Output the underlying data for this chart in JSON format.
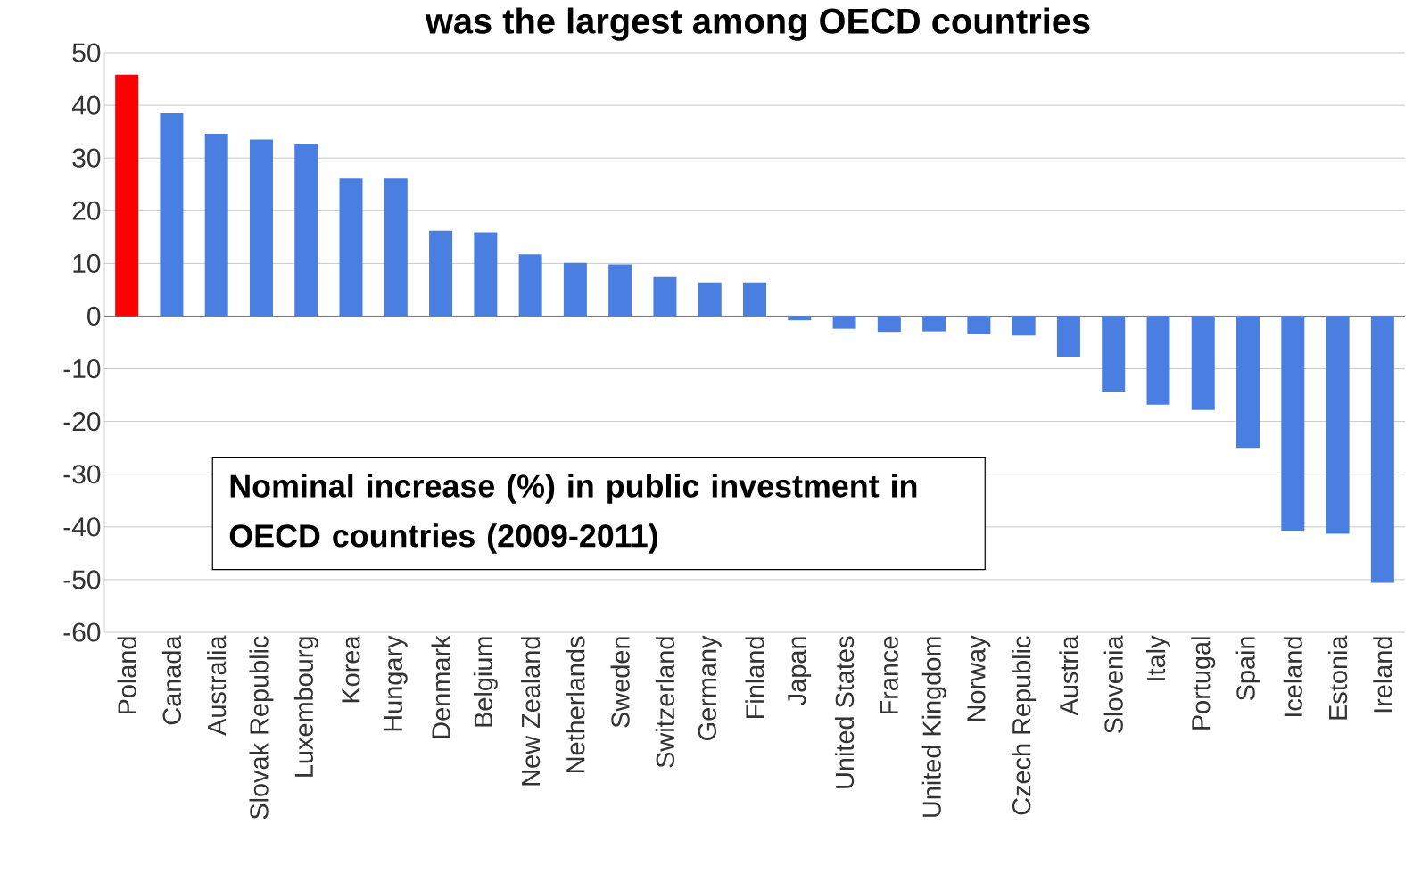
{
  "chart_data": {
    "type": "bar",
    "title": "was the largest among OECD countries",
    "categories": [
      "Poland",
      "Canada",
      "Australia",
      "Slovak Republic",
      "Luxembourg",
      "Korea",
      "Hungary",
      "Denmark",
      "Belgium",
      "New Zealand",
      "Netherlands",
      "Sweden",
      "Switzerland",
      "Germany",
      "Finland",
      "Japan",
      "United States",
      "France",
      "United Kingdom",
      "Norway",
      "Czech Republic",
      "Austria",
      "Slovenia",
      "Italy",
      "Portugal",
      "Spain",
      "Iceland",
      "Estonia",
      "Ireland"
    ],
    "values": [
      45.8,
      38.5,
      34.6,
      33.5,
      32.7,
      26.1,
      26.1,
      16.2,
      15.9,
      11.7,
      10.1,
      9.8,
      7.4,
      6.4,
      6.4,
      -0.8,
      -2.4,
      -3.0,
      -2.9,
      -3.4,
      -3.7,
      -7.7,
      -14.3,
      -16.8,
      -17.8,
      -25.0,
      -40.7,
      -41.3,
      -50.6
    ],
    "colors": [
      "#ff0000",
      "#4a7ee0",
      "#4a7ee0",
      "#4a7ee0",
      "#4a7ee0",
      "#4a7ee0",
      "#4a7ee0",
      "#4a7ee0",
      "#4a7ee0",
      "#4a7ee0",
      "#4a7ee0",
      "#4a7ee0",
      "#4a7ee0",
      "#4a7ee0",
      "#4a7ee0",
      "#4a7ee0",
      "#4a7ee0",
      "#4a7ee0",
      "#4a7ee0",
      "#4a7ee0",
      "#4a7ee0",
      "#4a7ee0",
      "#4a7ee0",
      "#4a7ee0",
      "#4a7ee0",
      "#4a7ee0",
      "#4a7ee0",
      "#4a7ee0",
      "#4a7ee0"
    ],
    "ylim": [
      -60,
      50
    ],
    "yticks": [
      -60,
      -50,
      -40,
      -30,
      -20,
      -10,
      0,
      10,
      20,
      30,
      40,
      50
    ],
    "grid": "y",
    "annotations": [
      "Nominal increase (%) in public investment in OECD countries (2009-2011)"
    ]
  }
}
